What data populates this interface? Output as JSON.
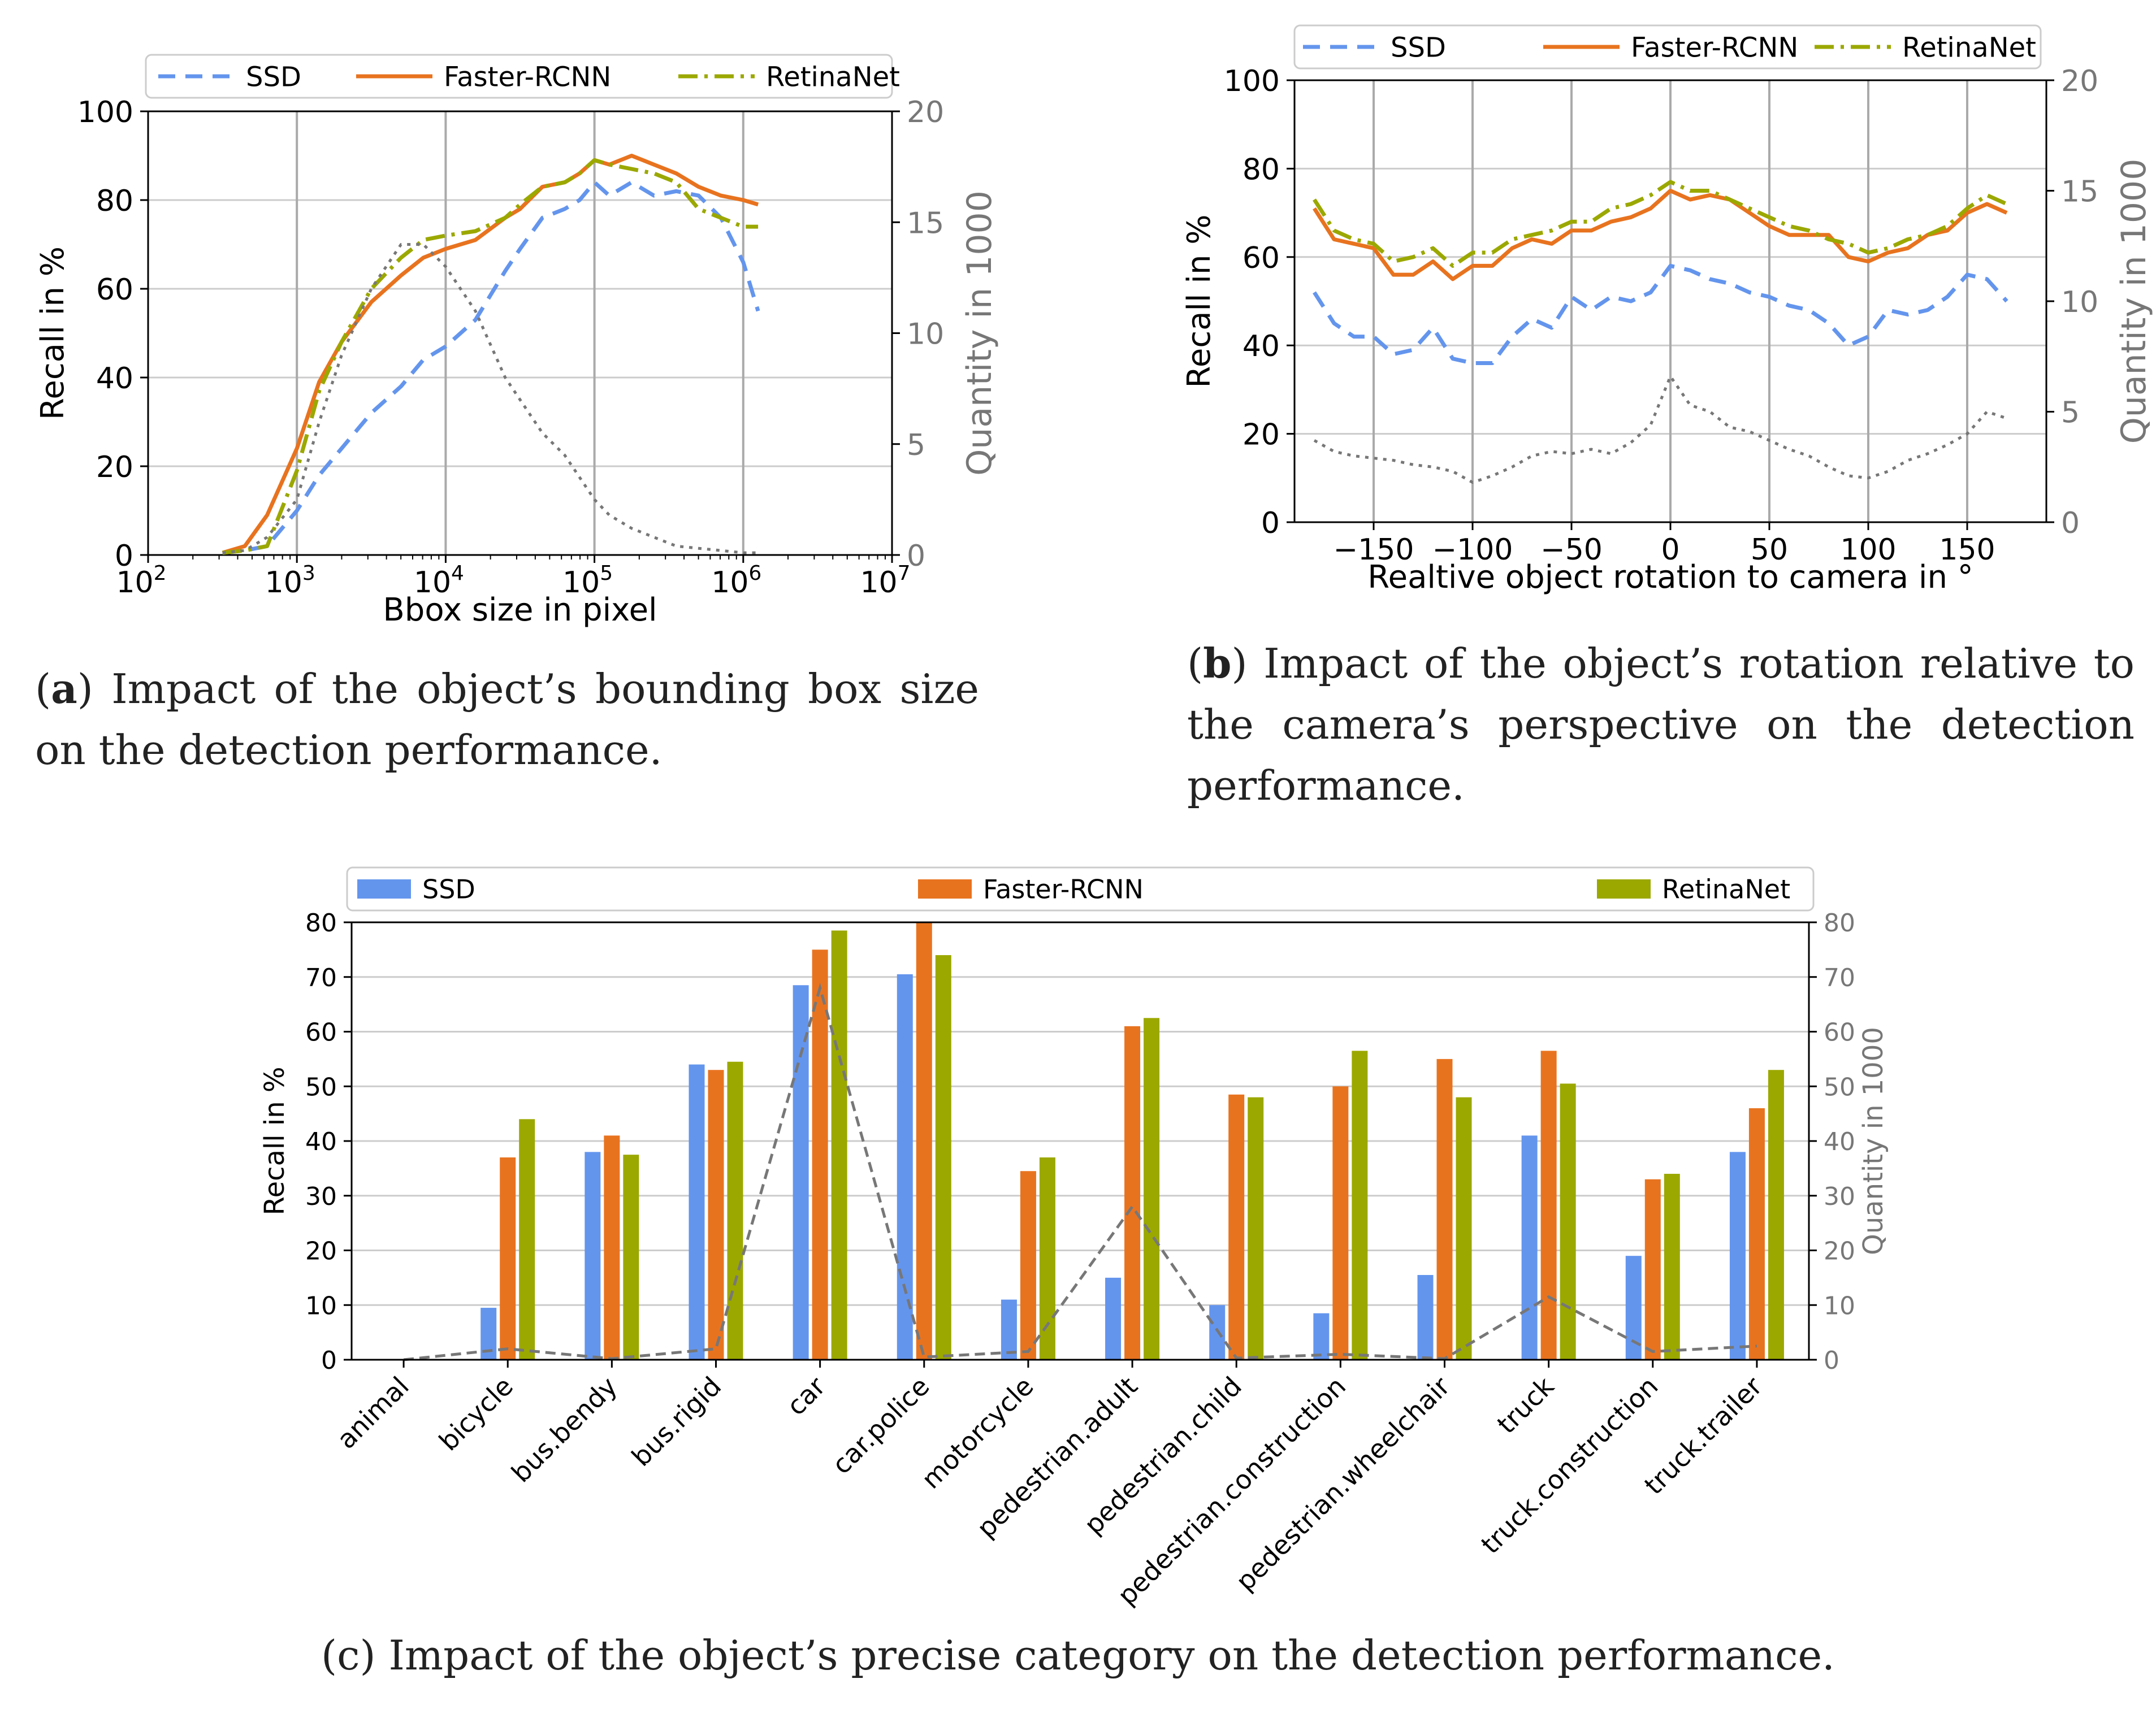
{
  "colors": {
    "ssd": "#6495ED",
    "faster": "#E8731F",
    "retina": "#9BA800",
    "quantity": "#777777",
    "grid": "#cccccc"
  },
  "captions": {
    "a": {
      "label": "a",
      "text": " Impact of the object’s bounding box size on the detection performance."
    },
    "b": {
      "label": "b",
      "text": " Impact of the object’s rotation relative to the camera’s perspective on the detection performance."
    },
    "c": {
      "label": "c",
      "text": " Impact of the object’s precise category on the detection performance."
    }
  },
  "chart_data": [
    {
      "id": "a",
      "type": "line",
      "xscale": "log",
      "xlabel": "Bbox size in pixel",
      "ylabel": "Recall in %",
      "y2label": "Quantity in 1000",
      "xlim_exp": [
        2,
        7
      ],
      "x_ticks_exp": [
        2,
        3,
        4,
        5,
        6,
        7
      ],
      "ylim": [
        0,
        100
      ],
      "y_ticks": [
        0,
        20,
        40,
        60,
        80,
        100
      ],
      "y2lim": [
        0,
        20
      ],
      "y2_ticks": [
        0,
        5,
        10,
        15,
        20
      ],
      "legend": [
        "SSD",
        "Faster-RCNN",
        "RetinaNet"
      ],
      "legend_position": "top",
      "x_exp": [
        2.5,
        2.65,
        2.8,
        3.0,
        3.15,
        3.3,
        3.5,
        3.7,
        3.85,
        4.0,
        4.2,
        4.4,
        4.5,
        4.65,
        4.8,
        4.9,
        5.0,
        5.1,
        5.25,
        5.4,
        5.55,
        5.7,
        5.85,
        6.0,
        6.1
      ],
      "series": [
        {
          "name": "SSD",
          "axis": "left",
          "values": [
            0.5,
            1,
            2,
            10,
            18,
            24,
            32,
            38,
            44,
            47,
            53,
            64,
            69,
            76,
            78,
            80,
            84,
            81,
            84,
            81,
            82,
            81,
            76,
            66,
            55
          ]
        },
        {
          "name": "Faster-RCNN",
          "axis": "left",
          "values": [
            0.5,
            2,
            9,
            24,
            39,
            48,
            57,
            63,
            67,
            69,
            71,
            76,
            78,
            83,
            84,
            86,
            89,
            88,
            90,
            88,
            86,
            83,
            81,
            80,
            79
          ]
        },
        {
          "name": "RetinaNet",
          "axis": "left",
          "values": [
            0.5,
            1,
            2,
            19,
            37,
            48,
            60,
            67,
            71,
            72,
            73,
            76,
            79,
            83,
            84,
            86,
            89,
            88,
            87,
            86,
            84,
            78,
            76,
            74,
            74
          ]
        },
        {
          "name": "Quantity",
          "axis": "right",
          "values": [
            0.1,
            0.2,
            0.8,
            2.5,
            6,
            9,
            12,
            14,
            14,
            13,
            11,
            8,
            7,
            5.5,
            4.5,
            3.5,
            2.5,
            1.8,
            1.2,
            0.8,
            0.4,
            0.3,
            0.2,
            0.1,
            0.1
          ]
        }
      ]
    },
    {
      "id": "b",
      "type": "line",
      "xlabel": "Realtive object rotation to camera in °",
      "ylabel": "Recall in %",
      "y2label": "Quantity in 1000",
      "xlim": [
        -190,
        190
      ],
      "x_ticks": [
        -150,
        -100,
        -50,
        0,
        50,
        100,
        150
      ],
      "x_tick_labels": [
        "−150",
        "−100",
        "−50",
        "0",
        "50",
        "100",
        "150"
      ],
      "ylim": [
        0,
        100
      ],
      "y_ticks": [
        0,
        20,
        40,
        60,
        80,
        100
      ],
      "y2lim": [
        0,
        20
      ],
      "y2_ticks": [
        0,
        5,
        10,
        15,
        20
      ],
      "legend": [
        "SSD",
        "Faster-RCNN",
        "RetinaNet"
      ],
      "legend_position": "top",
      "x": [
        -180,
        -170,
        -160,
        -150,
        -140,
        -130,
        -120,
        -110,
        -100,
        -90,
        -80,
        -70,
        -60,
        -50,
        -40,
        -30,
        -20,
        -10,
        0,
        10,
        20,
        30,
        40,
        50,
        60,
        70,
        80,
        90,
        100,
        110,
        120,
        130,
        140,
        150,
        160,
        170
      ],
      "series": [
        {
          "name": "SSD",
          "axis": "left",
          "values": [
            52,
            45,
            42,
            42,
            38,
            39,
            44,
            37,
            36,
            36,
            42,
            46,
            44,
            51,
            48,
            51,
            50,
            52,
            58,
            57,
            55,
            54,
            52,
            51,
            49,
            48,
            45,
            40,
            42,
            48,
            47,
            48,
            51,
            56,
            55,
            50
          ]
        },
        {
          "name": "Faster-RCNN",
          "axis": "left",
          "values": [
            71,
            64,
            63,
            62,
            56,
            56,
            59,
            55,
            58,
            58,
            62,
            64,
            63,
            66,
            66,
            68,
            69,
            71,
            75,
            73,
            74,
            73,
            70,
            67,
            65,
            65,
            65,
            60,
            59,
            61,
            62,
            65,
            66,
            70,
            72,
            70
          ]
        },
        {
          "name": "RetinaNet",
          "axis": "left",
          "values": [
            73,
            66,
            64,
            63,
            59,
            60,
            62,
            58,
            61,
            61,
            64,
            65,
            66,
            68,
            68,
            71,
            72,
            74,
            77,
            75,
            75,
            73,
            71,
            69,
            67,
            66,
            64,
            63,
            61,
            62,
            64,
            65,
            67,
            71,
            74,
            72
          ]
        },
        {
          "name": "Quantity",
          "axis": "right",
          "values": [
            3.7,
            3.2,
            3,
            2.9,
            2.8,
            2.6,
            2.5,
            2.3,
            1.8,
            2.1,
            2.5,
            3,
            3.2,
            3.1,
            3.3,
            3.1,
            3.6,
            4.4,
            6.6,
            5.3,
            5,
            4.3,
            4.1,
            3.7,
            3.3,
            3,
            2.5,
            2.1,
            2,
            2.3,
            2.8,
            3.1,
            3.5,
            4,
            5,
            4.7
          ]
        }
      ]
    },
    {
      "id": "c",
      "type": "bar",
      "ylabel": "Recall in %",
      "y2label": "Quantity in 1000",
      "ylim": [
        0,
        80
      ],
      "y_ticks": [
        0,
        10,
        20,
        30,
        40,
        50,
        60,
        70,
        80
      ],
      "y2lim": [
        0,
        80
      ],
      "y2_ticks": [
        0,
        10,
        20,
        30,
        40,
        50,
        60,
        70,
        80
      ],
      "legend": [
        "SSD",
        "Faster-RCNN",
        "RetinaNet"
      ],
      "legend_position": "top",
      "categories": [
        "animal",
        "bicycle",
        "bus.bendy",
        "bus.rigid",
        "car",
        "car.police",
        "motorcycle",
        "pedestrian.adult",
        "pedestrian.child",
        "pedestrian.construction",
        "pedestrian.wheelchair",
        "truck",
        "truck.construction",
        "truck.trailer"
      ],
      "series": [
        {
          "name": "SSD",
          "values": [
            0,
            9.5,
            38,
            54,
            68.5,
            70.5,
            11,
            15,
            10,
            8.5,
            15.5,
            41,
            19,
            38
          ]
        },
        {
          "name": "Faster-RCNN",
          "values": [
            0,
            37,
            41,
            53,
            75,
            80,
            34.5,
            61,
            48.5,
            50,
            55,
            56.5,
            33,
            46
          ]
        },
        {
          "name": "RetinaNet",
          "values": [
            0,
            44,
            37.5,
            54.5,
            78.5,
            74,
            37,
            62.5,
            48,
            56.5,
            48,
            50.5,
            34,
            53
          ]
        }
      ],
      "quantity": [
        0,
        2,
        0.2,
        2,
        68,
        0.5,
        1.5,
        28,
        0.3,
        1,
        0.2,
        11.5,
        1.5,
        2.5
      ]
    }
  ]
}
